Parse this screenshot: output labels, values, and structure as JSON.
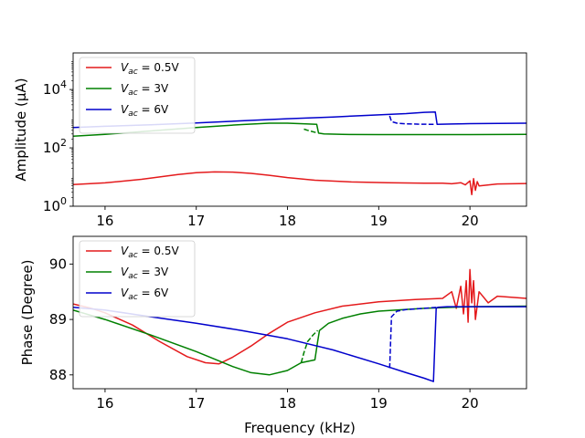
{
  "chart_data": [
    {
      "type": "line",
      "ylabel": "Amplitude (μA)",
      "xlabel": "",
      "yscale": "log",
      "xlim": [
        15.65,
        20.62
      ],
      "ylim": [
        1,
        180000
      ],
      "xticks": [
        16,
        17,
        18,
        19,
        20
      ],
      "yticks": [
        {
          "value": 1,
          "base": "10",
          "exp": "0"
        },
        {
          "value": 100,
          "base": "10",
          "exp": "2"
        },
        {
          "value": 10000,
          "base": "10",
          "exp": "4"
        }
      ],
      "legend_position": "upper-left",
      "series": [
        {
          "name": "V_ac = 0.5V",
          "legend_main": "V",
          "legend_sub": "ac",
          "legend_rest": " = 0.5V",
          "color": "#e41a1c",
          "style": "solid",
          "x": [
            15.65,
            16.0,
            16.4,
            16.8,
            17.0,
            17.2,
            17.4,
            17.6,
            17.8,
            18.0,
            18.3,
            18.7,
            19.1,
            19.5,
            19.7,
            19.8,
            19.9,
            19.95,
            20.0,
            20.02,
            20.04,
            20.06,
            20.08,
            20.1,
            20.3,
            20.62
          ],
          "y": [
            5.5,
            6.3,
            8.4,
            12.3,
            14.2,
            15.0,
            14.8,
            13.4,
            11.5,
            9.6,
            7.8,
            6.8,
            6.4,
            6.2,
            6.2,
            5.9,
            6.4,
            5.4,
            7.4,
            2.5,
            8.8,
            3.5,
            7.0,
            5.0,
            5.8,
            6.0
          ]
        },
        {
          "name": "V_ac = 3V",
          "legend_main": "V",
          "legend_sub": "ac",
          "legend_rest": " = 3V",
          "color": "#008000",
          "style": "solid",
          "x": [
            15.65,
            16.0,
            16.5,
            17.0,
            17.5,
            17.8,
            18.0,
            18.2,
            18.32,
            18.34,
            18.4,
            18.6,
            19.0,
            19.5,
            20.0,
            20.62
          ],
          "y": [
            250,
            290,
            380,
            500,
            630,
            700,
            700,
            670,
            640,
            320,
            300,
            290,
            285,
            285,
            285,
            290
          ]
        },
        {
          "name": "",
          "legend_main": "",
          "legend_sub": "",
          "legend_rest": "",
          "color": "#008000",
          "style": "dashed",
          "x": [
            18.18,
            18.22,
            18.26,
            18.32
          ],
          "y": [
            440,
            400,
            370,
            330
          ]
        },
        {
          "name": "V_ac = 6V",
          "legend_main": "V",
          "legend_sub": "ac",
          "legend_rest": " = 6V",
          "color": "#0000cc",
          "style": "solid",
          "x": [
            15.65,
            16.0,
            16.5,
            17.0,
            17.5,
            18.0,
            18.5,
            19.0,
            19.3,
            19.5,
            19.62,
            19.64,
            19.8,
            20.0,
            20.62
          ],
          "y": [
            500,
            550,
            620,
            720,
            850,
            1000,
            1150,
            1350,
            1500,
            1650,
            1700,
            640,
            660,
            680,
            700
          ]
        },
        {
          "name": "",
          "legend_main": "",
          "legend_sub": "",
          "legend_rest": "",
          "color": "#0000cc",
          "style": "dashed",
          "x": [
            19.12,
            19.14,
            19.2,
            19.3,
            19.45,
            19.62
          ],
          "y": [
            1250,
            800,
            700,
            670,
            650,
            640
          ]
        }
      ]
    },
    {
      "type": "line",
      "ylabel": "Phase (Degree)",
      "xlabel": "Frequency (kHz)",
      "yscale": "linear",
      "xlim": [
        15.65,
        20.62
      ],
      "ylim": [
        87.75,
        90.5
      ],
      "xticks": [
        16,
        17,
        18,
        19,
        20
      ],
      "yticks": [
        {
          "value": 88,
          "label": "88"
        },
        {
          "value": 89,
          "label": "89"
        },
        {
          "value": 90,
          "label": "90"
        }
      ],
      "legend_position": "upper-left",
      "series": [
        {
          "name": "V_ac = 0.5V",
          "legend_main": "V",
          "legend_sub": "ac",
          "legend_rest": " = 0.5V",
          "color": "#e41a1c",
          "style": "solid",
          "x": [
            15.65,
            15.75,
            15.85,
            16.0,
            16.3,
            16.6,
            16.9,
            17.1,
            17.25,
            17.4,
            17.6,
            17.8,
            18.0,
            18.3,
            18.6,
            19.0,
            19.4,
            19.7,
            19.8,
            19.85,
            19.9,
            19.93,
            19.96,
            19.98,
            20.0,
            20.02,
            20.04,
            20.06,
            20.1,
            20.2,
            20.3,
            20.62
          ],
          "y": [
            89.28,
            89.24,
            89.2,
            89.12,
            88.9,
            88.6,
            88.33,
            88.22,
            88.2,
            88.32,
            88.52,
            88.75,
            88.95,
            89.12,
            89.24,
            89.32,
            89.36,
            89.38,
            89.5,
            89.2,
            89.6,
            89.1,
            89.7,
            88.95,
            89.9,
            89.3,
            89.7,
            89.0,
            89.5,
            89.3,
            89.42,
            89.38
          ]
        },
        {
          "name": "V_ac = 3V",
          "legend_main": "V",
          "legend_sub": "ac",
          "legend_rest": " = 3V",
          "color": "#008000",
          "style": "solid",
          "x": [
            15.65,
            16.0,
            16.5,
            17.0,
            17.4,
            17.6,
            17.8,
            18.0,
            18.15,
            18.3,
            18.33,
            18.35,
            18.45,
            18.6,
            18.8,
            19.0,
            19.5,
            20.0,
            20.62
          ],
          "y": [
            89.17,
            89.0,
            88.72,
            88.42,
            88.15,
            88.04,
            88.0,
            88.08,
            88.22,
            88.27,
            88.6,
            88.8,
            88.93,
            89.02,
            89.1,
            89.15,
            89.2,
            89.23,
            89.24
          ]
        },
        {
          "name": "",
          "legend_main": "",
          "legend_sub": "",
          "legend_rest": "",
          "color": "#008000",
          "style": "dashed",
          "x": [
            18.15,
            18.18,
            18.22,
            18.28,
            18.33
          ],
          "y": [
            88.22,
            88.4,
            88.6,
            88.72,
            88.8
          ]
        },
        {
          "name": "V_ac = 6V",
          "legend_main": "V",
          "legend_sub": "ac",
          "legend_rest": " = 6V",
          "color": "#0000cc",
          "style": "solid",
          "x": [
            15.65,
            16.0,
            16.5,
            17.0,
            17.5,
            18.0,
            18.5,
            19.0,
            19.3,
            19.5,
            19.6,
            19.63,
            19.65,
            19.75,
            20.0,
            20.62
          ],
          "y": [
            89.22,
            89.17,
            89.05,
            88.93,
            88.8,
            88.65,
            88.45,
            88.2,
            88.04,
            87.94,
            87.88,
            89.2,
            89.22,
            89.23,
            89.23,
            89.23
          ]
        },
        {
          "name": "",
          "legend_main": "",
          "legend_sub": "",
          "legend_rest": "",
          "color": "#0000cc",
          "style": "dashed",
          "x": [
            19.12,
            19.14,
            19.2,
            19.3,
            19.5,
            19.65
          ],
          "y": [
            88.12,
            89.05,
            89.15,
            89.18,
            89.2,
            89.22
          ]
        }
      ]
    }
  ]
}
